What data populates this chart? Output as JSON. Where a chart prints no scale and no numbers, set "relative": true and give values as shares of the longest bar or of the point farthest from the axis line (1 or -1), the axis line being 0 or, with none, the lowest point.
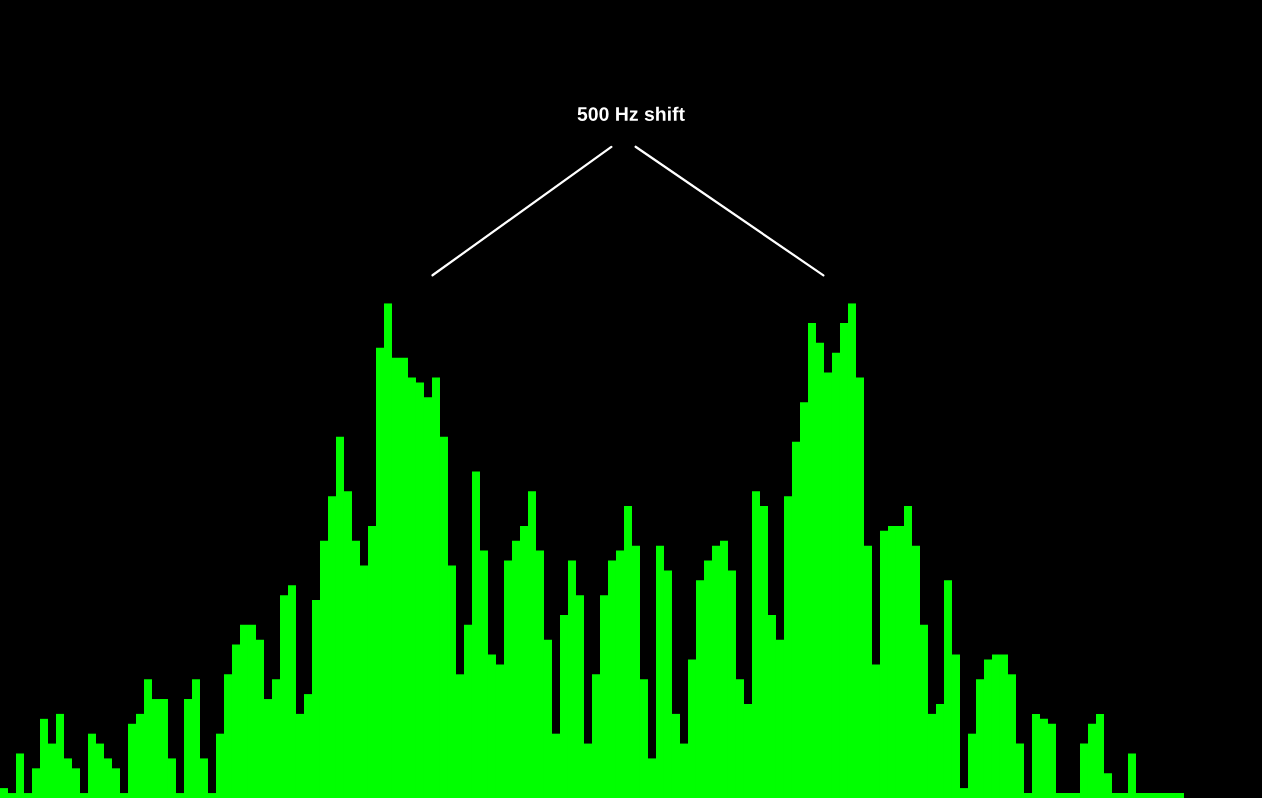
{
  "chart_data": {
    "type": "bar",
    "relative": true,
    "color": "#00ff00",
    "annotations": [
      "500 Hz shift"
    ],
    "categories": [
      null,
      null,
      null,
      null,
      null,
      null,
      null,
      null,
      null,
      null,
      null,
      null,
      null,
      null,
      null,
      null,
      null,
      null,
      null,
      null,
      null,
      null,
      null,
      null,
      null,
      null,
      null,
      null,
      null,
      null,
      null,
      null,
      null,
      null,
      null,
      null,
      null,
      null,
      null,
      null,
      null,
      null,
      null,
      null,
      null,
      null,
      null,
      null,
      null,
      null,
      null,
      null,
      null,
      null,
      null,
      null,
      null,
      null,
      null,
      null,
      null,
      null,
      null,
      null,
      null,
      null,
      null,
      null,
      null,
      null,
      null,
      null,
      null,
      null,
      null,
      null,
      null,
      null,
      null,
      null,
      null,
      null,
      null,
      null,
      null,
      null,
      null,
      null,
      null,
      null,
      null,
      null,
      null,
      null,
      null,
      null,
      null,
      null,
      null,
      null,
      null,
      null,
      null,
      null,
      null,
      null,
      null,
      null,
      null,
      null,
      null,
      null,
      null,
      null,
      null,
      null,
      null,
      null,
      null,
      null,
      null,
      null,
      null,
      null,
      null,
      null,
      null,
      null,
      null,
      null,
      null,
      null,
      null,
      null,
      null,
      null,
      null,
      null,
      null,
      null,
      null,
      null,
      null,
      null,
      null,
      null,
      null,
      null
    ],
    "values": [
      0.02,
      0.01,
      0.09,
      0.01,
      0.06,
      0.16,
      0.11,
      0.17,
      0.08,
      0.06,
      0.01,
      0.13,
      0.11,
      0.08,
      0.06,
      0.01,
      0.15,
      0.17,
      0.24,
      0.2,
      0.2,
      0.08,
      0.01,
      0.2,
      0.24,
      0.08,
      0.01,
      0.13,
      0.25,
      0.31,
      0.35,
      0.35,
      0.32,
      0.2,
      0.24,
      0.41,
      0.43,
      0.17,
      0.21,
      0.4,
      0.52,
      0.61,
      0.73,
      0.62,
      0.52,
      0.47,
      0.55,
      0.91,
      1,
      0.89,
      0.89,
      0.85,
      0.84,
      0.81,
      0.85,
      0.73,
      0.47,
      0.25,
      0.35,
      0.66,
      0.5,
      0.29,
      0.27,
      0.48,
      0.52,
      0.55,
      0.62,
      0.5,
      0.32,
      0.13,
      0.37,
      0.48,
      0.41,
      0.11,
      0.25,
      0.41,
      0.48,
      0.5,
      0.59,
      0.51,
      0.24,
      0.08,
      0.51,
      0.46,
      0.17,
      0.11,
      0.28,
      0.44,
      0.48,
      0.51,
      0.52,
      0.46,
      0.24,
      0.19,
      0.62,
      0.59,
      0.37,
      0.32,
      0.61,
      0.72,
      0.8,
      0.96,
      0.92,
      0.86,
      0.9,
      0.96,
      1,
      0.85,
      0.51,
      0.27,
      0.54,
      0.55,
      0.55,
      0.59,
      0.51,
      0.35,
      0.17,
      0.19,
      0.44,
      0.29,
      0.02,
      0.13,
      0.24,
      0.28,
      0.29,
      0.29,
      0.25,
      0.11,
      0.01,
      0.17,
      0.16,
      0.15,
      0.01,
      0.01,
      0.01,
      0.11,
      0.15,
      0.17,
      0.05,
      0.01,
      0.01,
      0.09,
      0.01,
      0.01,
      0.01,
      0.01,
      0.01,
      0.01
    ]
  }
}
